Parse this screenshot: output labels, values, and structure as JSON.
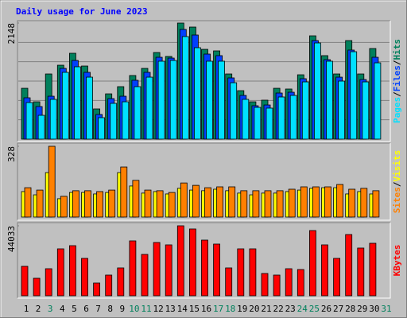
{
  "chart_data": {
    "type": "bar",
    "title": "Daily usage for June 2023",
    "categories": [
      "1",
      "2",
      "3",
      "4",
      "5",
      "6",
      "7",
      "8",
      "9",
      "10",
      "11",
      "12",
      "13",
      "14",
      "15",
      "16",
      "17",
      "18",
      "19",
      "20",
      "21",
      "22",
      "23",
      "24",
      "25",
      "26",
      "27",
      "28",
      "29",
      "30",
      "31"
    ],
    "category_colors": [
      "#000000",
      "#000000",
      "#00805c",
      "#000000",
      "#000000",
      "#000000",
      "#000000",
      "#000000",
      "#000000",
      "#00805c",
      "#00805c",
      "#000000",
      "#000000",
      "#000000",
      "#000000",
      "#000000",
      "#00805c",
      "#00805c",
      "#000000",
      "#000000",
      "#000000",
      "#000000",
      "#000000",
      "#00805c",
      "#00805c",
      "#000000",
      "#000000",
      "#000000",
      "#000000",
      "#000000",
      "#00805c"
    ],
    "legend_separator": "/",
    "panels": [
      {
        "ylim": [
          0,
          2148
        ],
        "yticks": [
          2148
        ],
        "grid": true,
        "series": [
          {
            "name": "Hits",
            "color": "#00805c",
            "values": [
              941,
              691,
              1206,
              1368,
              1589,
              1353,
              559,
              838,
              971,
              1177,
              1309,
              1603,
              1530,
              2148,
              2074,
              1662,
              1633,
              1206,
              897,
              691,
              721,
              941,
              927,
              1191,
              1912,
              1545,
              1206,
              1824,
              1206,
              1677,
              null
            ]
          },
          {
            "name": "Files",
            "color": "#0040ff",
            "values": [
              765,
              603,
              794,
              1309,
              1456,
              1236,
              456,
              750,
              794,
              1089,
              1236,
              1515,
              1500,
              2030,
              1927,
              1574,
              1545,
              1133,
              809,
              618,
              632,
              853,
              868,
              1118,
              1824,
              1471,
              1147,
              1648,
              1103,
              1515,
              null
            ]
          },
          {
            "name": "Pages",
            "color": "#00e0ff",
            "values": [
              677,
              441,
              736,
              1236,
              1339,
              1147,
              397,
              662,
              691,
              971,
              1147,
              1442,
              1456,
              1898,
              1692,
              1442,
              1442,
              1044,
              736,
              588,
              574,
              780,
              809,
              1059,
              1780,
              1442,
              1074,
              1618,
              1059,
              1412,
              null
            ]
          }
        ]
      },
      {
        "ylim": [
          0,
          328
        ],
        "yticks": [
          328
        ],
        "grid": false,
        "series": [
          {
            "name": "Visits",
            "color": "#ffff00",
            "values": [
              118,
              103,
              206,
              85,
              114,
              114,
              107,
              114,
              206,
              144,
              111,
              118,
              107,
              133,
              125,
              122,
              129,
              122,
              111,
              103,
              111,
              111,
              118,
              125,
              133,
              136,
              136,
              107,
              118,
              107,
              null
            ]
          },
          {
            "name": "Sites",
            "color": "#ff8000",
            "values": [
              136,
              125,
              328,
              96,
              122,
              122,
              118,
              125,
              232,
              170,
              125,
              122,
              114,
              158,
              147,
              136,
              140,
              140,
              122,
              122,
              122,
              122,
              129,
              140,
              140,
              140,
              151,
              129,
              133,
              122,
              null
            ]
          }
        ]
      },
      {
        "ylim": [
          0,
          44033
        ],
        "yticks": [
          44033
        ],
        "grid": false,
        "series": [
          {
            "name": "KBytes",
            "color": "#ff0000",
            "values": [
              18515,
              11009,
              17014,
              29524,
              31525,
              23519,
              8006,
              13010,
              17514,
              34528,
              26021,
              33527,
              32026,
              44033,
              42034,
              35028,
              32526,
              17514,
              29524,
              29524,
              14011,
              13010,
              17014,
              16513,
              41033,
              32026,
              23519,
              38531,
              30024,
              33026,
              null
            ]
          }
        ]
      }
    ]
  }
}
